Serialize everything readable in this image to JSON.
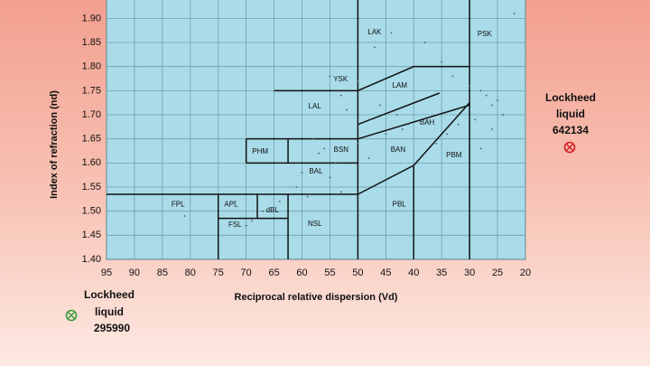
{
  "chart_data": {
    "type": "scatter",
    "x_label": "Reciprocal relative dispersion (Vd)",
    "y_label": "Index of refraction (nd)",
    "xlim": [
      95,
      20
    ],
    "ylim": [
      1.4,
      1.95
    ],
    "xticks": [
      95,
      90,
      85,
      80,
      75,
      70,
      65,
      60,
      55,
      50,
      45,
      40,
      35,
      30,
      25,
      20
    ],
    "yticks": [
      {
        "value": 1.4,
        "label": "1.40"
      },
      1.45,
      {
        "value": 1.5,
        "label": "1.50"
      },
      1.55,
      {
        "value": 1.6,
        "label": "1.60"
      },
      1.65,
      {
        "value": 1.7,
        "label": "1.70"
      },
      1.75,
      {
        "value": 1.8,
        "label": "1.80"
      },
      1.85,
      {
        "value": 1.9,
        "label": "1.90"
      }
    ],
    "grid": true,
    "plot_color": "#a9dbe8",
    "grid_color": "#6f9fae",
    "point_color": "#4a5a60",
    "points": {
      "x": [
        47,
        44,
        38,
        35,
        33,
        30,
        28,
        27,
        26,
        25,
        24,
        22,
        55,
        53,
        52,
        50,
        48,
        46,
        45,
        43,
        42,
        41,
        58,
        57,
        56,
        54,
        60,
        61,
        59,
        64,
        67,
        69,
        70,
        72,
        81,
        55,
        53,
        50,
        48,
        36,
        34,
        32,
        29,
        28,
        26
      ],
      "y": [
        1.84,
        1.87,
        1.85,
        1.81,
        1.78,
        1.76,
        1.75,
        1.74,
        1.72,
        1.73,
        1.7,
        1.91,
        1.78,
        1.74,
        1.71,
        1.77,
        1.69,
        1.72,
        1.66,
        1.7,
        1.67,
        1.68,
        1.65,
        1.62,
        1.63,
        1.6,
        1.58,
        1.55,
        1.53,
        1.52,
        1.5,
        1.48,
        1.47,
        1.52,
        1.49,
        1.57,
        1.54,
        1.64,
        1.61,
        1.64,
        1.66,
        1.68,
        1.69,
        1.63,
        1.67
      ]
    },
    "boundaries": [
      {
        "x": [
          95,
          50
        ],
        "y": [
          1.535,
          1.535
        ]
      },
      {
        "x": [
          75,
          75
        ],
        "y": [
          1.4,
          1.535
        ]
      },
      {
        "x": [
          75,
          62.5
        ],
        "y": [
          1.485,
          1.485
        ]
      },
      {
        "x": [
          62.5,
          62.5
        ],
        "y": [
          1.4,
          1.535
        ]
      },
      {
        "x": [
          68,
          68
        ],
        "y": [
          1.485,
          1.535
        ]
      },
      {
        "x": [
          70,
          50
        ],
        "y": [
          1.65,
          1.65
        ]
      },
      {
        "x": [
          70,
          50
        ],
        "y": [
          1.6,
          1.6
        ]
      },
      {
        "x": [
          70,
          70
        ],
        "y": [
          1.6,
          1.65
        ]
      },
      {
        "x": [
          62.5,
          62.5
        ],
        "y": [
          1.6,
          1.65
        ]
      },
      {
        "x": [
          65,
          50
        ],
        "y": [
          1.75,
          1.75
        ]
      },
      {
        "x": [
          50,
          50
        ],
        "y": [
          1.4,
          1.95
        ]
      },
      {
        "x": [
          30,
          30
        ],
        "y": [
          1.4,
          1.95
        ]
      },
      {
        "x": [
          40,
          40
        ],
        "y": [
          1.4,
          1.595
        ]
      },
      {
        "x": [
          50,
          40,
          30
        ],
        "y": [
          1.75,
          1.8,
          1.8
        ]
      },
      {
        "x": [
          50,
          35.4
        ],
        "y": [
          1.68,
          1.745
        ]
      },
      {
        "x": [
          50,
          30
        ],
        "y": [
          1.65,
          1.72
        ]
      },
      {
        "x": [
          50,
          40,
          30
        ],
        "y": [
          1.535,
          1.595,
          1.725
        ]
      }
    ],
    "regions": [
      {
        "name": "LAK",
        "x": 47,
        "y": 1.871
      },
      {
        "name": "PSK",
        "x": 27.3,
        "y": 1.867
      },
      {
        "name": "YSK",
        "x": 53.1,
        "y": 1.773
      },
      {
        "name": "LAM",
        "x": 42.5,
        "y": 1.76
      },
      {
        "name": "LAL",
        "x": 57.7,
        "y": 1.717
      },
      {
        "name": "BAH",
        "x": 37.6,
        "y": 1.683
      },
      {
        "name": "PHM",
        "x": 67.5,
        "y": 1.623
      },
      {
        "name": "BSN",
        "x": 53,
        "y": 1.627
      },
      {
        "name": "BAN",
        "x": 42.8,
        "y": 1.627
      },
      {
        "name": "PBM",
        "x": 32.8,
        "y": 1.616
      },
      {
        "name": "BAL",
        "x": 57.5,
        "y": 1.582
      },
      {
        "name": "FPL",
        "x": 82.2,
        "y": 1.514
      },
      {
        "name": "APL",
        "x": 72.7,
        "y": 1.514
      },
      {
        "name": "dBL",
        "x": 65.3,
        "y": 1.501
      },
      {
        "name": "FSL",
        "x": 72,
        "y": 1.471
      },
      {
        "name": "NSL",
        "x": 57.7,
        "y": 1.473
      },
      {
        "name": "PBL",
        "x": 42.6,
        "y": 1.514
      }
    ],
    "annotations": [
      {
        "lines": [
          "Lockheed",
          "liquid",
          "642134"
        ],
        "color": "#d42020"
      },
      {
        "lines": [
          "Lockheed",
          "liquid",
          "295990"
        ],
        "color": "#3a9a3a"
      }
    ]
  }
}
